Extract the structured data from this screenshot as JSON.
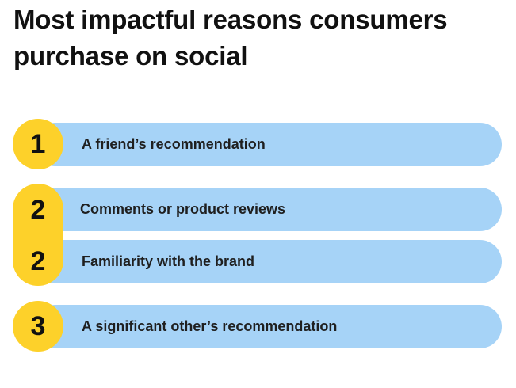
{
  "title": "Most impactful reasons consumers purchase on social",
  "colors": {
    "bar": "#a6d3f7",
    "badge": "#fdd12a",
    "text": "#111111"
  },
  "items": [
    {
      "rank": "1",
      "label": "A friend’s recommendation"
    },
    {
      "rank": "2",
      "label": "Comments or product reviews"
    },
    {
      "rank": "2",
      "label": "Familiarity with the brand"
    },
    {
      "rank": "3",
      "label": "A significant other’s recommendation"
    }
  ]
}
